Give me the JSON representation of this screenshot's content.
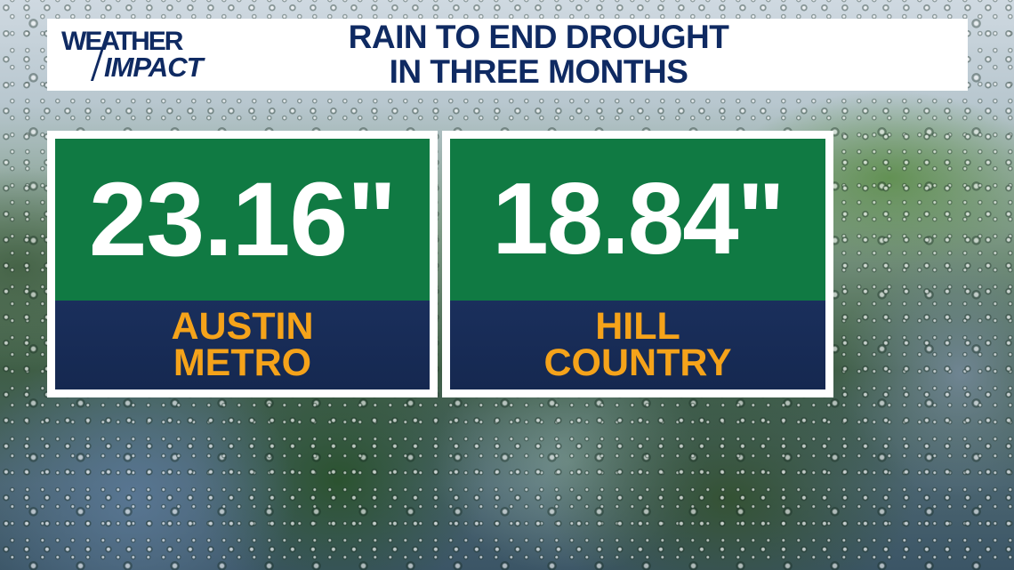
{
  "brand": {
    "logo_line1": "WEATHER",
    "logo_line2": "IMPACT"
  },
  "header": {
    "title_line1": "RAIN TO END DROUGHT",
    "title_line2": "IN THREE MONTHS"
  },
  "cards": [
    {
      "value": "23.16\"",
      "label_line1": "AUSTIN",
      "label_line2": "METRO"
    },
    {
      "value": "18.84\"",
      "label_line1": "HILL",
      "label_line2": "COUNTRY"
    }
  ],
  "colors": {
    "navy": "#0f2a62",
    "green": "#107a43",
    "label_bg": "#172b55",
    "accent_orange": "#f5a31a",
    "white": "#ffffff"
  },
  "background": "rain-drops-on-glass"
}
